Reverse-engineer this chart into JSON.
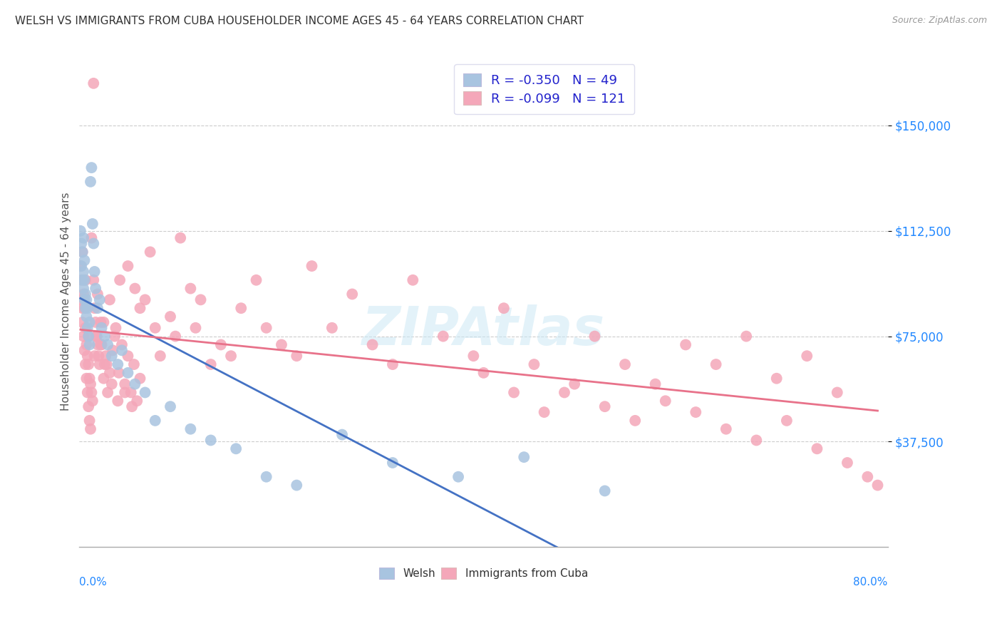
{
  "title": "WELSH VS IMMIGRANTS FROM CUBA HOUSEHOLDER INCOME AGES 45 - 64 YEARS CORRELATION CHART",
  "source": "Source: ZipAtlas.com",
  "ylabel": "Householder Income Ages 45 - 64 years",
  "xlim": [
    0.0,
    0.8
  ],
  "ylim": [
    0,
    175000
  ],
  "ytick_values": [
    37500,
    75000,
    112500,
    150000
  ],
  "welsh_R": -0.35,
  "welsh_N": 49,
  "cuba_R": -0.099,
  "cuba_N": 121,
  "welsh_color": "#a8c4e0",
  "cuba_color": "#f4a7b9",
  "welsh_line_color": "#4472c4",
  "cuba_line_color": "#e8728a",
  "welsh_points_x": [
    0.001,
    0.002,
    0.002,
    0.003,
    0.003,
    0.004,
    0.004,
    0.004,
    0.005,
    0.005,
    0.005,
    0.006,
    0.006,
    0.007,
    0.007,
    0.008,
    0.008,
    0.009,
    0.01,
    0.01,
    0.011,
    0.012,
    0.013,
    0.014,
    0.015,
    0.016,
    0.018,
    0.02,
    0.022,
    0.025,
    0.028,
    0.032,
    0.038,
    0.042,
    0.048,
    0.055,
    0.065,
    0.075,
    0.09,
    0.11,
    0.13,
    0.155,
    0.185,
    0.215,
    0.26,
    0.31,
    0.375,
    0.44,
    0.52
  ],
  "welsh_points_y": [
    112500,
    100000,
    108000,
    95000,
    105000,
    92000,
    98000,
    110000,
    88000,
    95000,
    102000,
    85000,
    90000,
    82000,
    88000,
    78000,
    85000,
    75000,
    80000,
    72000,
    130000,
    135000,
    115000,
    108000,
    98000,
    92000,
    85000,
    88000,
    78000,
    75000,
    72000,
    68000,
    65000,
    70000,
    62000,
    58000,
    55000,
    45000,
    50000,
    42000,
    38000,
    35000,
    25000,
    22000,
    40000,
    30000,
    25000,
    32000,
    20000
  ],
  "cuba_points_x": [
    0.001,
    0.002,
    0.002,
    0.003,
    0.003,
    0.004,
    0.004,
    0.005,
    0.005,
    0.006,
    0.006,
    0.007,
    0.007,
    0.008,
    0.008,
    0.009,
    0.009,
    0.01,
    0.01,
    0.011,
    0.011,
    0.012,
    0.013,
    0.014,
    0.015,
    0.016,
    0.017,
    0.018,
    0.019,
    0.02,
    0.022,
    0.024,
    0.026,
    0.028,
    0.03,
    0.032,
    0.035,
    0.038,
    0.04,
    0.045,
    0.048,
    0.052,
    0.055,
    0.06,
    0.065,
    0.07,
    0.075,
    0.08,
    0.09,
    0.095,
    0.1,
    0.11,
    0.115,
    0.12,
    0.13,
    0.14,
    0.15,
    0.16,
    0.175,
    0.185,
    0.2,
    0.215,
    0.23,
    0.25,
    0.27,
    0.29,
    0.31,
    0.33,
    0.36,
    0.39,
    0.42,
    0.45,
    0.48,
    0.51,
    0.54,
    0.57,
    0.6,
    0.63,
    0.66,
    0.69,
    0.72,
    0.75,
    0.4,
    0.43,
    0.46,
    0.49,
    0.52,
    0.55,
    0.58,
    0.61,
    0.64,
    0.67,
    0.7,
    0.73,
    0.76,
    0.78,
    0.79,
    0.003,
    0.006,
    0.009,
    0.012,
    0.015,
    0.018,
    0.021,
    0.024,
    0.027,
    0.03,
    0.033,
    0.036,
    0.039,
    0.042,
    0.045,
    0.048,
    0.051,
    0.054,
    0.057,
    0.06,
    0.014,
    0.017,
    0.021,
    0.025
  ],
  "cuba_points_y": [
    100000,
    95000,
    88000,
    105000,
    80000,
    90000,
    75000,
    85000,
    70000,
    78000,
    65000,
    72000,
    60000,
    68000,
    55000,
    65000,
    50000,
    60000,
    45000,
    58000,
    42000,
    55000,
    52000,
    165000,
    85000,
    80000,
    75000,
    72000,
    68000,
    65000,
    72000,
    60000,
    68000,
    55000,
    62000,
    58000,
    75000,
    52000,
    95000,
    55000,
    100000,
    50000,
    92000,
    85000,
    88000,
    105000,
    78000,
    68000,
    82000,
    75000,
    110000,
    92000,
    78000,
    88000,
    65000,
    72000,
    68000,
    85000,
    95000,
    78000,
    72000,
    68000,
    100000,
    78000,
    90000,
    72000,
    65000,
    95000,
    75000,
    68000,
    85000,
    65000,
    55000,
    75000,
    65000,
    58000,
    72000,
    65000,
    75000,
    60000,
    68000,
    55000,
    62000,
    55000,
    48000,
    58000,
    50000,
    45000,
    52000,
    48000,
    42000,
    38000,
    45000,
    35000,
    30000,
    25000,
    22000,
    85000,
    95000,
    75000,
    110000,
    68000,
    90000,
    72000,
    80000,
    65000,
    88000,
    70000,
    78000,
    62000,
    72000,
    58000,
    68000,
    55000,
    65000,
    52000,
    60000,
    95000,
    75000,
    80000,
    65000
  ]
}
